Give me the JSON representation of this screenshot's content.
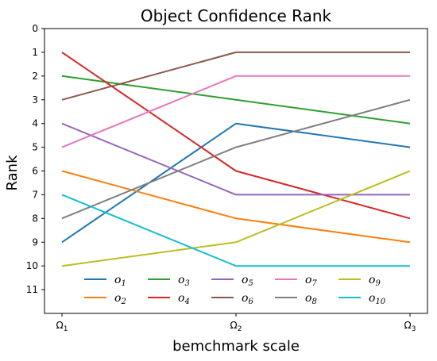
{
  "chart_data": {
    "type": "line",
    "title": "Object Confidence Rank",
    "xlabel": "bemchmark scale",
    "ylabel": "Rank",
    "x_tick_labels": [
      "Ω1",
      "Ω2",
      "Ω3"
    ],
    "x_tick_parts": [
      {
        "base": "Ω",
        "sub": "1"
      },
      {
        "base": "Ω",
        "sub": "2"
      },
      {
        "base": "Ω",
        "sub": "3"
      }
    ],
    "y_ticks": [
      0,
      1,
      2,
      3,
      4,
      5,
      6,
      7,
      8,
      9,
      10,
      11
    ],
    "ylim": [
      12,
      0
    ],
    "y_inverted": true,
    "grid": false,
    "legend_position": "lower-center",
    "legend_columns": 5,
    "series": [
      {
        "name": "o1",
        "base": "o",
        "sub": "1",
        "color": "#1f77b4",
        "values": [
          9,
          4,
          5
        ]
      },
      {
        "name": "o2",
        "base": "o",
        "sub": "2",
        "color": "#ff7f0e",
        "values": [
          6,
          8,
          9
        ]
      },
      {
        "name": "o3",
        "base": "o",
        "sub": "3",
        "color": "#2ca02c",
        "values": [
          2,
          3,
          4
        ]
      },
      {
        "name": "o4",
        "base": "o",
        "sub": "4",
        "color": "#d62728",
        "values": [
          1,
          6,
          8
        ]
      },
      {
        "name": "o5",
        "base": "o",
        "sub": "5",
        "color": "#9467bd",
        "values": [
          4,
          7,
          7
        ]
      },
      {
        "name": "o6",
        "base": "o",
        "sub": "6",
        "color": "#8c564b",
        "values": [
          3,
          1,
          1
        ]
      },
      {
        "name": "o7",
        "base": "o",
        "sub": "7",
        "color": "#e377c2",
        "values": [
          5,
          2,
          2
        ]
      },
      {
        "name": "o8",
        "base": "o",
        "sub": "8",
        "color": "#7f7f7f",
        "values": [
          8,
          5,
          3
        ]
      },
      {
        "name": "o9",
        "base": "o",
        "sub": "9",
        "color": "#bcbd22",
        "values": [
          10,
          9,
          6
        ]
      },
      {
        "name": "o10",
        "base": "o",
        "sub": "10",
        "color": "#17becf",
        "values": [
          7,
          10,
          10
        ]
      }
    ]
  }
}
